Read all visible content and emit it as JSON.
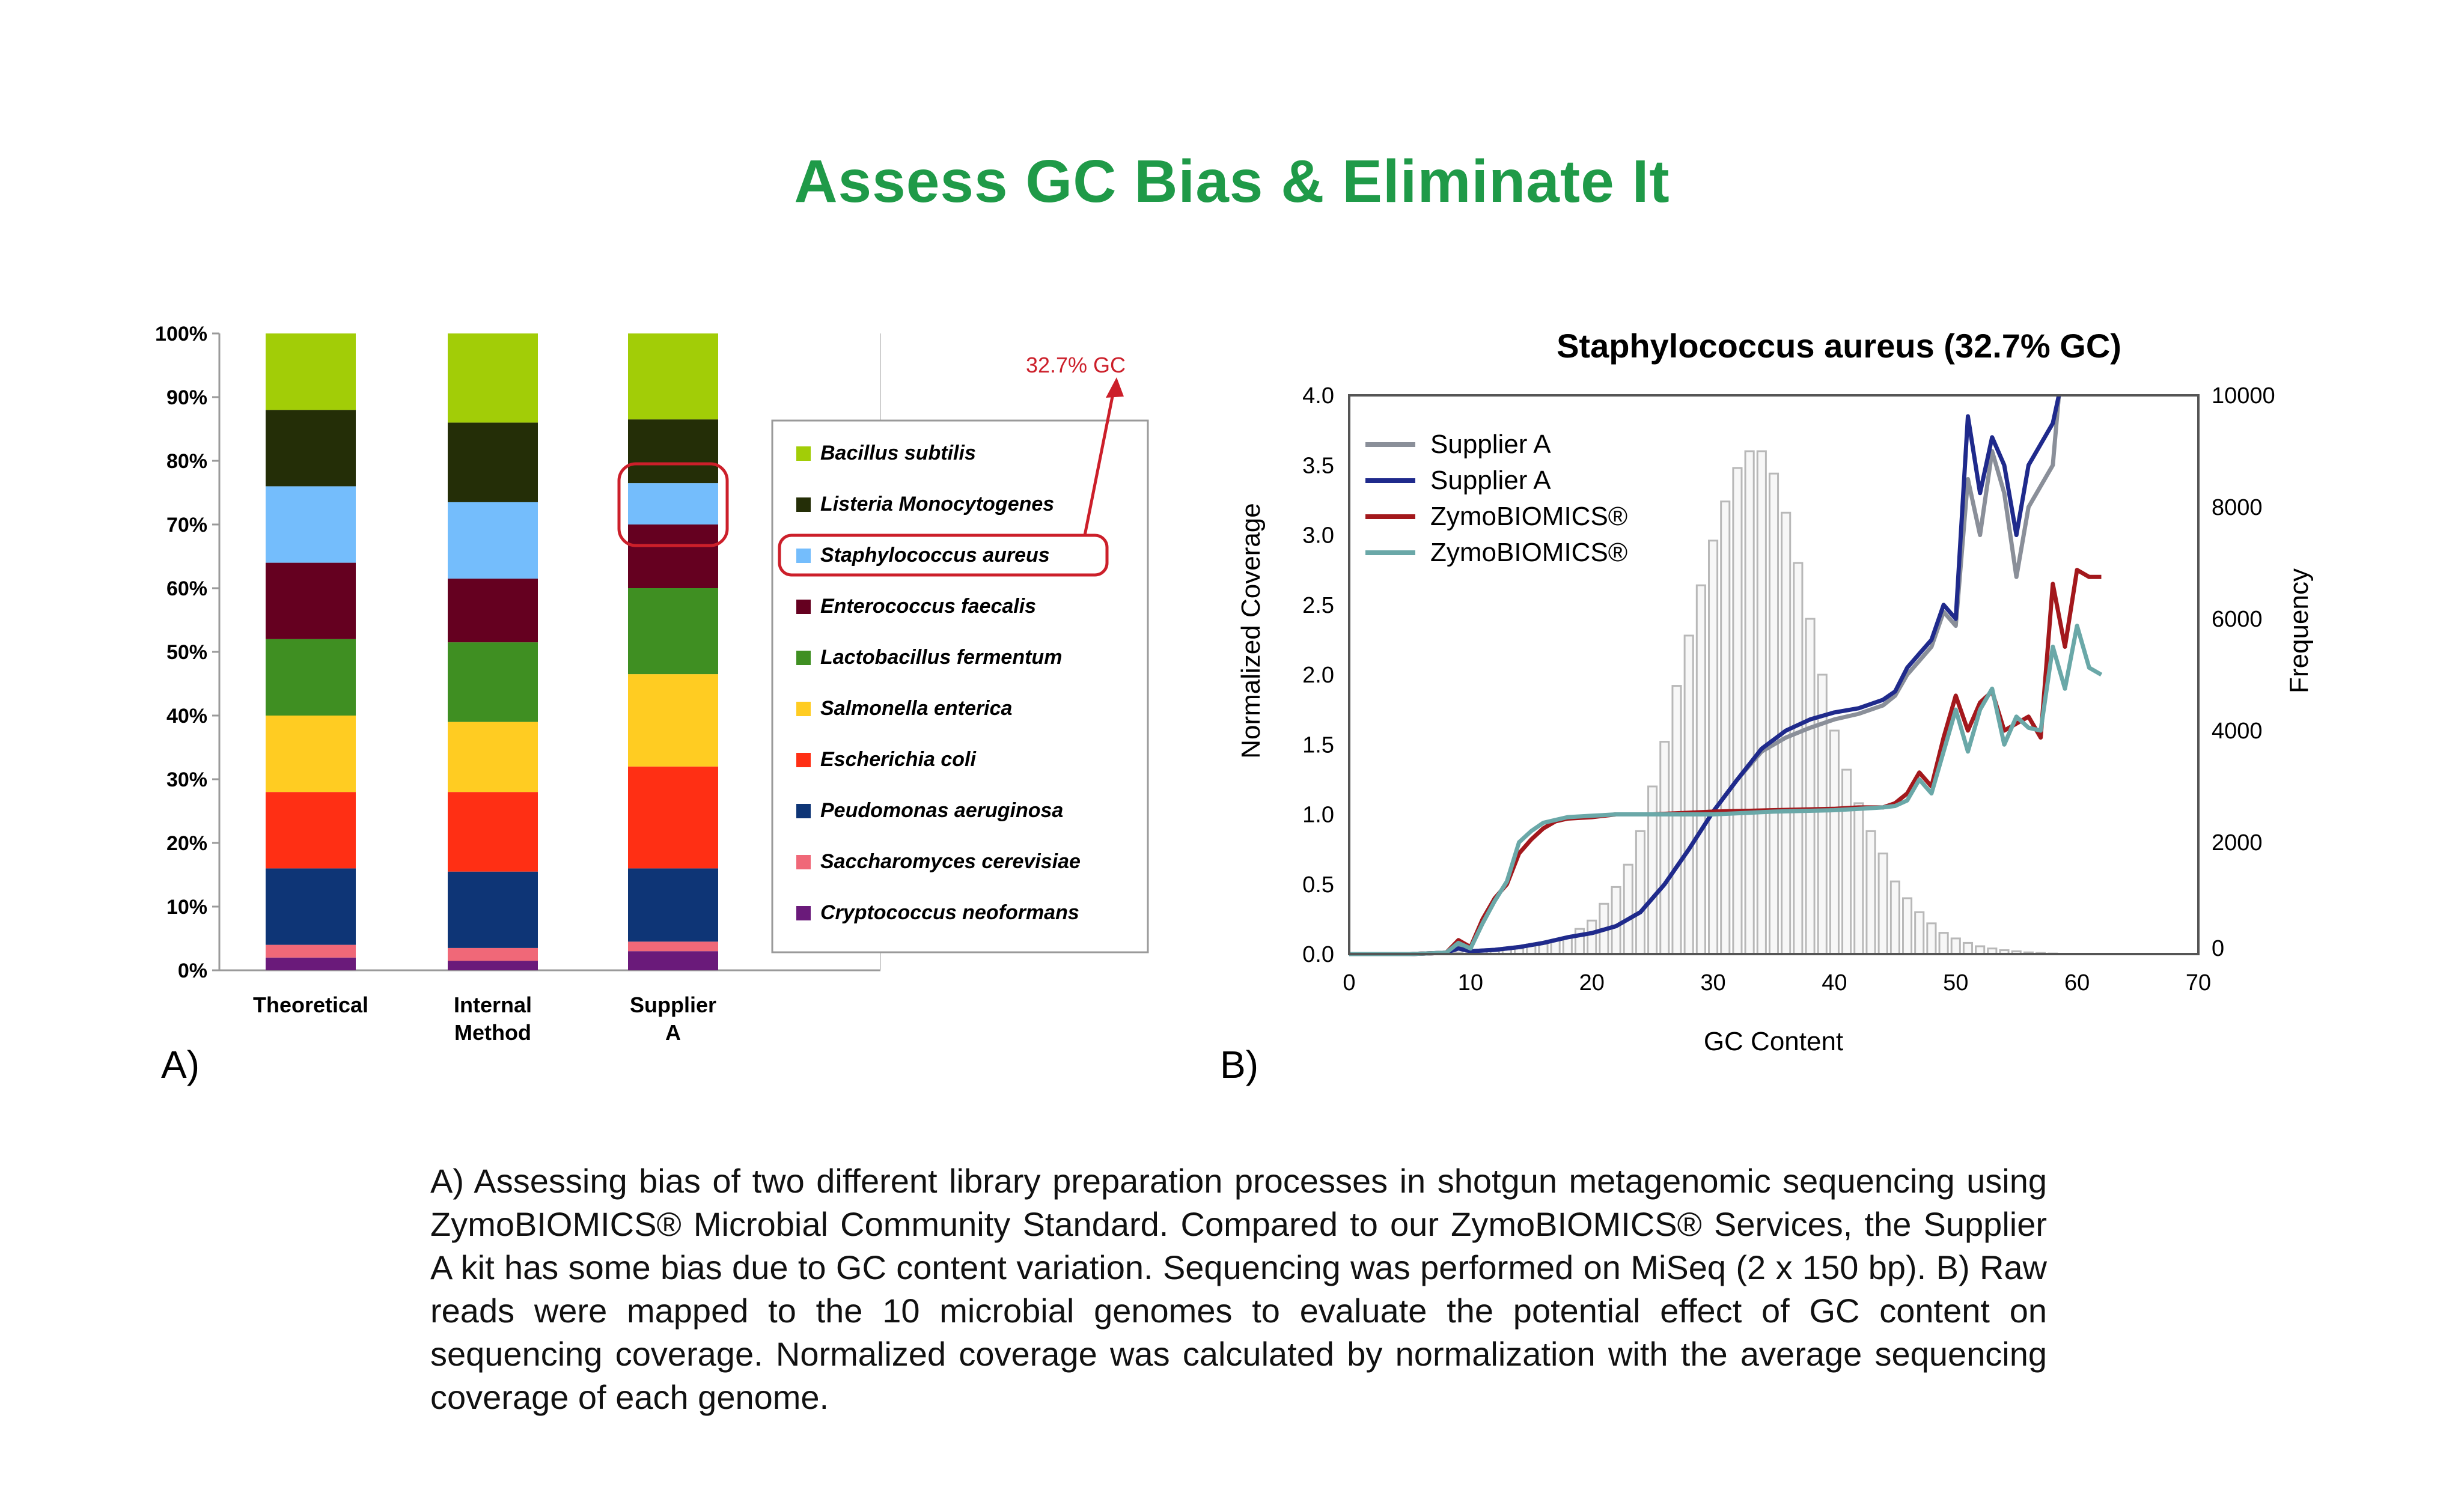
{
  "page": {
    "title": "Assess GC Bias & Eliminate It",
    "panel_a_label": "A)",
    "panel_b_label": "B)",
    "caption": "A) Assessing bias of two different library preparation processes in shotgun metagenomic sequencing using ZymoBIOMICS® Microbial Community Standard. Compared to our ZymoBIOMICS® Services, the Supplier A kit has some bias due to GC content variation. Sequencing was performed  on MiSeq (2 x 150 bp). B) Raw reads were mapped to the 10 microbial genomes to evaluate the potential effect of GC content on sequencing coverage. Normalized coverage was calculated by normalization with the average sequencing coverage of each genome."
  },
  "colors": {
    "title_green": "#1f9a48",
    "highlight_red": "#cc1f2a",
    "supplier_gray": "#8a8f99",
    "supplier_blue": "#1f2a8c",
    "zymo_red": "#a3181c",
    "zymo_teal": "#6aa8a8"
  },
  "chart_data": [
    {
      "type": "bar",
      "stacked": true,
      "categories": [
        "Theoretical",
        "Internal Method",
        "Supplier A"
      ],
      "ylim": [
        0,
        100
      ],
      "y_ticks": [
        "0%",
        "10%",
        "20%",
        "30%",
        "40%",
        "50%",
        "60%",
        "70%",
        "80%",
        "90%",
        "100%"
      ],
      "grid": false,
      "legend_position": "right",
      "annotation": "32.7% GC",
      "highlighted_series": "Staphylococcus aureus",
      "series": [
        {
          "name": "Cryptococcus neoformans",
          "color": "#6a1a7a",
          "values": [
            2,
            1.5,
            3
          ]
        },
        {
          "name": "Saccharomyces cerevisiae",
          "color": "#f06878",
          "values": [
            2,
            2,
            1.5
          ]
        },
        {
          "name": "Peudomonas aeruginosa",
          "color": "#0e3576",
          "values": [
            12,
            12,
            11.5
          ]
        },
        {
          "name": "Escherichia coli",
          "color": "#ff2f14",
          "values": [
            12,
            12.5,
            16
          ]
        },
        {
          "name": "Salmonella enterica",
          "color": "#ffcc22",
          "values": [
            12,
            11,
            14.5
          ]
        },
        {
          "name": "Lactobacillus fermentum",
          "color": "#3f8f22",
          "values": [
            12,
            12.5,
            13.5
          ]
        },
        {
          "name": "Enterococcus faecalis",
          "color": "#650020",
          "values": [
            12,
            10,
            10
          ]
        },
        {
          "name": "Staphylococcus aureus",
          "color": "#74bdfc",
          "values": [
            12,
            12,
            6.5
          ]
        },
        {
          "name": "Listeria Monocytogenes",
          "color": "#242e07",
          "values": [
            12,
            12.5,
            10
          ]
        },
        {
          "name": "Bacillus subtilis",
          "color": "#a2cd07",
          "values": [
            12,
            14,
            13.5
          ]
        }
      ]
    },
    {
      "type": "line",
      "title": "Staphylococcus aureus (32.7% GC)",
      "xlabel": "GC Content",
      "ylabel": "Normalized Coverage",
      "y2label": "Frequency",
      "xlim": [
        0,
        70
      ],
      "ylim": [
        0,
        4.0
      ],
      "y2lim": [
        0,
        10000
      ],
      "x_ticks": [
        0,
        10,
        20,
        30,
        40,
        50,
        60,
        70
      ],
      "y_ticks": [
        "0.0",
        "0.5",
        "1.0",
        "1.5",
        "2.0",
        "2.5",
        "3.0",
        "3.5",
        "4.0"
      ],
      "y2_ticks": [
        0,
        2000,
        4000,
        6000,
        8000,
        10000
      ],
      "legend_position": "top-left",
      "series": [
        {
          "name": "Supplier A",
          "color": "#8a8f99",
          "x": [
            0,
            5,
            8,
            9,
            10,
            12,
            14,
            16,
            18,
            20,
            22,
            24,
            26,
            28,
            30,
            32,
            34,
            36,
            38,
            40,
            42,
            44,
            45,
            46,
            47,
            48,
            49,
            50,
            51,
            52,
            53,
            54,
            55,
            56,
            58,
            58.5
          ],
          "y": [
            0,
            0,
            0.01,
            0.05,
            0.02,
            0.03,
            0.05,
            0.08,
            0.12,
            0.15,
            0.2,
            0.3,
            0.5,
            0.75,
            1.02,
            1.25,
            1.45,
            1.55,
            1.62,
            1.68,
            1.72,
            1.78,
            1.85,
            2.0,
            2.1,
            2.2,
            2.45,
            2.35,
            3.4,
            3.0,
            3.6,
            3.3,
            2.7,
            3.2,
            3.5,
            4.0
          ]
        },
        {
          "name": "Supplier A",
          "color": "#1f2a8c",
          "x": [
            0,
            5,
            8,
            9,
            10,
            12,
            14,
            16,
            18,
            20,
            22,
            24,
            26,
            28,
            30,
            32,
            34,
            36,
            38,
            40,
            42,
            44,
            45,
            46,
            47,
            48,
            49,
            50,
            51,
            52,
            53,
            54,
            55,
            56,
            58,
            58.5
          ],
          "y": [
            0,
            0,
            0.01,
            0.04,
            0.02,
            0.03,
            0.05,
            0.08,
            0.12,
            0.15,
            0.2,
            0.3,
            0.5,
            0.75,
            1.02,
            1.25,
            1.47,
            1.6,
            1.68,
            1.73,
            1.76,
            1.82,
            1.88,
            2.05,
            2.15,
            2.25,
            2.5,
            2.4,
            3.85,
            3.3,
            3.7,
            3.5,
            3.0,
            3.5,
            3.8,
            4.0
          ]
        },
        {
          "name": "ZymoBIOMICS®",
          "color": "#a3181c",
          "x": [
            0,
            5,
            8,
            9,
            10,
            11,
            12,
            13,
            14,
            15,
            16,
            17,
            18,
            20,
            22,
            25,
            30,
            35,
            40,
            42,
            44,
            45,
            46,
            47,
            48,
            49,
            50,
            51,
            52,
            53,
            54,
            55,
            56,
            57,
            58,
            59,
            60,
            61,
            62
          ],
          "y": [
            0,
            0,
            0.01,
            0.1,
            0.05,
            0.25,
            0.4,
            0.5,
            0.72,
            0.82,
            0.9,
            0.95,
            0.97,
            0.98,
            1.0,
            1.0,
            1.02,
            1.03,
            1.04,
            1.05,
            1.05,
            1.08,
            1.15,
            1.3,
            1.2,
            1.55,
            1.85,
            1.6,
            1.8,
            1.88,
            1.6,
            1.65,
            1.7,
            1.55,
            2.65,
            2.2,
            2.75,
            2.7,
            2.7
          ]
        },
        {
          "name": "ZymoBIOMICS®",
          "color": "#6aa8a8",
          "x": [
            0,
            5,
            8,
            9,
            10,
            11,
            12,
            13,
            14,
            15,
            16,
            17,
            18,
            20,
            22,
            25,
            30,
            35,
            40,
            42,
            44,
            45,
            46,
            47,
            48,
            49,
            50,
            51,
            52,
            53,
            54,
            55,
            56,
            57,
            58,
            59,
            60,
            61,
            62
          ],
          "y": [
            0,
            0,
            0.01,
            0.08,
            0.04,
            0.22,
            0.38,
            0.52,
            0.8,
            0.88,
            0.94,
            0.96,
            0.98,
            0.99,
            1.0,
            1.0,
            1.0,
            1.02,
            1.03,
            1.04,
            1.05,
            1.06,
            1.1,
            1.25,
            1.15,
            1.45,
            1.75,
            1.45,
            1.75,
            1.9,
            1.5,
            1.7,
            1.62,
            1.6,
            2.2,
            1.9,
            2.35,
            2.05,
            2.0
          ]
        },
        {
          "name": "",
          "type": "histogram",
          "axis": "y2",
          "color": "#b8b8b8",
          "x": [
            8,
            9,
            10,
            11,
            12,
            13,
            14,
            15,
            16,
            17,
            18,
            19,
            20,
            21,
            22,
            23,
            24,
            25,
            26,
            27,
            28,
            29,
            30,
            31,
            32,
            33,
            34,
            35,
            36,
            37,
            38,
            39,
            40,
            41,
            42,
            43,
            44,
            45,
            46,
            47,
            48,
            49,
            50,
            51,
            52,
            53,
            54,
            55,
            56,
            57,
            58
          ],
          "y": [
            20,
            30,
            40,
            50,
            60,
            80,
            100,
            150,
            180,
            250,
            300,
            450,
            600,
            900,
            1200,
            1600,
            2200,
            3000,
            3800,
            4800,
            5700,
            6600,
            7400,
            8100,
            8700,
            9000,
            9000,
            8600,
            7900,
            7000,
            6000,
            5000,
            4000,
            3300,
            2700,
            2200,
            1800,
            1300,
            1000,
            750,
            550,
            380,
            280,
            200,
            140,
            100,
            70,
            50,
            30,
            20,
            10
          ]
        }
      ]
    }
  ]
}
